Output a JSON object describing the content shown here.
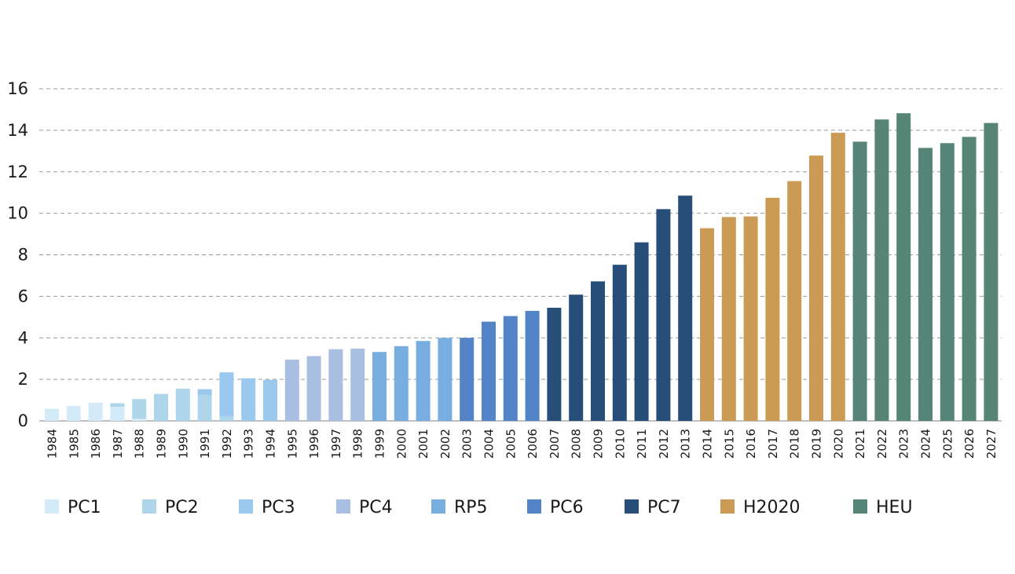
{
  "chart_data": {
    "type": "bar",
    "stacked": true,
    "categories": [
      "1984",
      "1985",
      "1986",
      "1987",
      "1988",
      "1989",
      "1990",
      "1991",
      "1992",
      "1993",
      "1994",
      "1995",
      "1996",
      "1997",
      "1998",
      "1999",
      "2000",
      "2001",
      "2002",
      "2003",
      "2004",
      "2005",
      "2006",
      "2007",
      "2008",
      "2009",
      "2010",
      "2011",
      "2012",
      "2013",
      "2014",
      "2015",
      "2016",
      "2017",
      "2018",
      "2019",
      "2020",
      "2021",
      "2022",
      "2023",
      "2024",
      "2025",
      "2026",
      "2027"
    ],
    "yticks": [
      "0",
      "2",
      "4",
      "6",
      "8",
      "10",
      "12",
      "14",
      "16"
    ],
    "ylim": [
      0,
      16
    ],
    "grid": true,
    "legend_position": "bottom",
    "series": [
      {
        "name": "PC1",
        "color": "#d3ebf8",
        "values": [
          0.58,
          0.72,
          0.88,
          0.68,
          0.1,
          0,
          0,
          0,
          0,
          0,
          0,
          0,
          0,
          0,
          0,
          0,
          0,
          0,
          0,
          0,
          0,
          0,
          0,
          0,
          0,
          0,
          0,
          0,
          0,
          0,
          0,
          0,
          0,
          0,
          0,
          0,
          0,
          0,
          0,
          0,
          0,
          0,
          0,
          0
        ]
      },
      {
        "name": "PC2",
        "color": "#afd5ea",
        "values": [
          0,
          0,
          0,
          0.17,
          0.95,
          1.3,
          1.55,
          1.25,
          0.22,
          0,
          0,
          0,
          0,
          0,
          0,
          0,
          0,
          0,
          0,
          0,
          0,
          0,
          0,
          0,
          0,
          0,
          0,
          0,
          0,
          0,
          0,
          0,
          0,
          0,
          0,
          0,
          0,
          0,
          0,
          0,
          0,
          0,
          0,
          0
        ]
      },
      {
        "name": "PC3",
        "color": "#9ac8ee",
        "values": [
          0,
          0,
          0,
          0,
          0,
          0,
          0,
          0.28,
          2.12,
          2.05,
          1.98,
          0,
          0,
          0,
          0,
          0,
          0,
          0,
          0,
          0,
          0,
          0,
          0,
          0,
          0,
          0,
          0,
          0,
          0,
          0,
          0,
          0,
          0,
          0,
          0,
          0,
          0,
          0,
          0,
          0,
          0,
          0,
          0,
          0
        ]
      },
      {
        "name": "PC4",
        "color": "#a8bfe2",
        "values": [
          0,
          0,
          0,
          0,
          0,
          0,
          0,
          0,
          0,
          0,
          0,
          2.95,
          3.12,
          3.45,
          3.48,
          0,
          0,
          0,
          0,
          0,
          0,
          0,
          0,
          0,
          0,
          0,
          0,
          0,
          0,
          0,
          0,
          0,
          0,
          0,
          0,
          0,
          0,
          0,
          0,
          0,
          0,
          0,
          0,
          0
        ]
      },
      {
        "name": "RP5",
        "color": "#77addf",
        "values": [
          0,
          0,
          0,
          0,
          0,
          0,
          0,
          0,
          0,
          0,
          0,
          0,
          0,
          0,
          0,
          3.32,
          3.6,
          3.85,
          4.0,
          0,
          0,
          0,
          0,
          0,
          0,
          0,
          0,
          0,
          0,
          0,
          0,
          0,
          0,
          0,
          0,
          0,
          0,
          0,
          0,
          0,
          0,
          0,
          0,
          0
        ]
      },
      {
        "name": "PC6",
        "color": "#5384c7",
        "values": [
          0,
          0,
          0,
          0,
          0,
          0,
          0,
          0,
          0,
          0,
          0,
          0,
          0,
          0,
          0,
          0,
          0,
          0,
          0,
          4.0,
          4.78,
          5.05,
          5.3,
          0,
          0,
          0,
          0,
          0,
          0,
          0,
          0,
          0,
          0,
          0,
          0,
          0,
          0,
          0,
          0,
          0,
          0,
          0,
          0,
          0
        ]
      },
      {
        "name": "PC7",
        "color": "#274d79",
        "values": [
          0,
          0,
          0,
          0,
          0,
          0,
          0,
          0,
          0,
          0,
          0,
          0,
          0,
          0,
          0,
          0,
          0,
          0,
          0,
          0,
          0,
          0,
          0,
          5.45,
          6.08,
          6.72,
          7.52,
          8.6,
          10.2,
          10.85,
          0,
          0,
          0,
          0,
          0,
          0,
          0,
          0,
          0,
          0,
          0,
          0,
          0,
          0
        ]
      },
      {
        "name": "H2020",
        "color": "#cb9b56",
        "values": [
          0,
          0,
          0,
          0,
          0,
          0,
          0,
          0,
          0,
          0,
          0,
          0,
          0,
          0,
          0,
          0,
          0,
          0,
          0,
          0,
          0,
          0,
          0,
          0,
          0,
          0,
          0,
          0,
          0,
          0,
          9.28,
          9.82,
          9.85,
          10.75,
          11.55,
          12.78,
          13.88,
          0,
          0,
          0,
          0,
          0,
          0,
          0
        ]
      },
      {
        "name": "HEU",
        "color": "#568577",
        "values": [
          0,
          0,
          0,
          0,
          0,
          0,
          0,
          0,
          0,
          0,
          0,
          0,
          0,
          0,
          0,
          0,
          0,
          0,
          0,
          0,
          0,
          0,
          0,
          0,
          0,
          0,
          0,
          0,
          0,
          0,
          0,
          0,
          0,
          0,
          0,
          0,
          0,
          13.45,
          14.52,
          14.82,
          13.15,
          13.38,
          13.68,
          14.35
        ]
      }
    ]
  }
}
